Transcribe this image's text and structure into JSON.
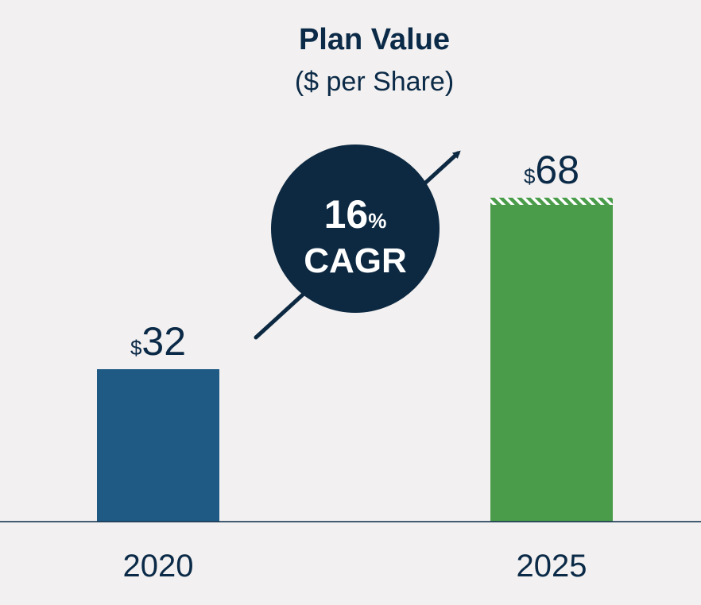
{
  "colors": {
    "background": "#f2f0f0",
    "text": "#0b2a47",
    "bar_2020": "#1f5a85",
    "bar_2025": "#4a9c4a",
    "hatch": "#8fc78a",
    "badge": "#0d2942",
    "badge_text": "#ffffff"
  },
  "chart_data": {
    "type": "bar",
    "title": "Plan Value",
    "subtitle": "($ per Share)",
    "categories": [
      "2020",
      "2025"
    ],
    "values": [
      32,
      68
    ],
    "value_prefix": "$",
    "value_labels": [
      "32",
      "68"
    ],
    "ylim": [
      0,
      100
    ],
    "xlabel": "",
    "ylabel": "",
    "grid": false,
    "annotation": {
      "value": "16",
      "unit": "%",
      "label": "CAGR"
    }
  }
}
